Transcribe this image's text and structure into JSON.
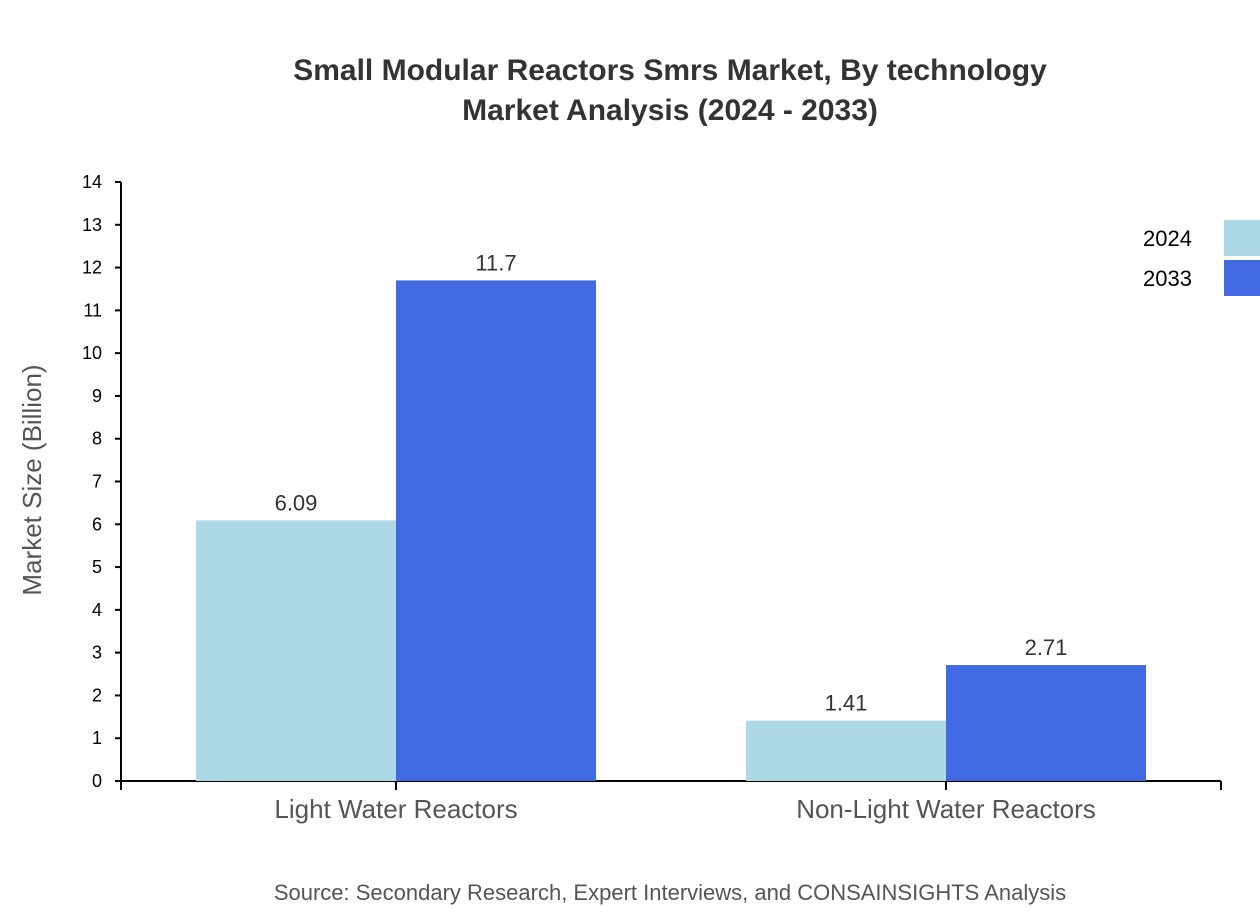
{
  "chart_data": {
    "type": "bar",
    "title_lines": [
      "Small Modular Reactors Smrs Market, By technology",
      "Market Analysis (2024 - 2033)"
    ],
    "xlabel": "",
    "ylabel": "Market Size (Billion)",
    "ylim": [
      0,
      14
    ],
    "yticks": [
      0,
      1,
      2,
      3,
      4,
      5,
      6,
      7,
      8,
      9,
      10,
      11,
      12,
      13,
      14
    ],
    "categories": [
      "Light Water Reactors",
      "Non-Light Water Reactors"
    ],
    "series": [
      {
        "name": "2024",
        "values": [
          6.09,
          1.41
        ],
        "labels": [
          "6.09",
          "1.41"
        ],
        "color": "#add8e6"
      },
      {
        "name": "2033",
        "values": [
          11.7,
          2.71
        ],
        "labels": [
          "11.7",
          "2.71"
        ],
        "color": "#4169e1"
      }
    ],
    "grid": false,
    "legend_position": "top-right",
    "source": "Source: Secondary Research, Expert Interviews, and CONSAINSIGHTS Analysis"
  }
}
